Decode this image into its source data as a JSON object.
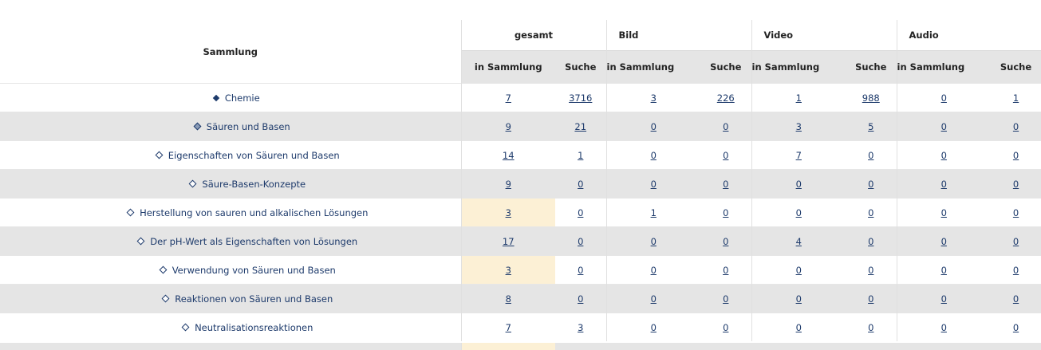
{
  "header": {
    "name_label": "Sammlung",
    "groups": [
      "gesamt",
      "Bild",
      "Video",
      "Audio"
    ],
    "sub_in": "in Sammlung",
    "sub_search": "Suche"
  },
  "rows": [
    {
      "label": "Chemie",
      "level": 0,
      "values": [
        "7",
        "3716",
        "3",
        "226",
        "1",
        "988",
        "0",
        "1"
      ]
    },
    {
      "label": "Säuren und Basen",
      "level": 1,
      "values": [
        "9",
        "21",
        "0",
        "0",
        "3",
        "5",
        "0",
        "0"
      ]
    },
    {
      "label": "Eigenschaften von Säuren und Basen",
      "level": 2,
      "values": [
        "14",
        "1",
        "0",
        "0",
        "7",
        "0",
        "0",
        "0"
      ]
    },
    {
      "label": "Säure-Basen-Konzepte",
      "level": 2,
      "values": [
        "9",
        "0",
        "0",
        "0",
        "0",
        "0",
        "0",
        "0"
      ]
    },
    {
      "label": "Herstellung von sauren und alkalischen Lösungen",
      "level": 2,
      "highlight": true,
      "values": [
        "3",
        "0",
        "1",
        "0",
        "0",
        "0",
        "0",
        "0"
      ]
    },
    {
      "label": "Der pH-Wert als Eigenschaften von Lösungen",
      "level": 2,
      "values": [
        "17",
        "0",
        "0",
        "0",
        "4",
        "0",
        "0",
        "0"
      ]
    },
    {
      "label": "Verwendung von Säuren und Basen",
      "level": 2,
      "highlight": true,
      "values": [
        "3",
        "0",
        "0",
        "0",
        "0",
        "0",
        "0",
        "0"
      ]
    },
    {
      "label": "Reaktionen von Säuren und Basen",
      "level": 2,
      "values": [
        "8",
        "0",
        "0",
        "0",
        "0",
        "0",
        "0",
        "0"
      ]
    },
    {
      "label": "Neutralisationsreaktionen",
      "level": 2,
      "values": [
        "7",
        "3",
        "0",
        "0",
        "0",
        "0",
        "0",
        "0"
      ]
    }
  ],
  "colors": {
    "link": "#1d3a6b",
    "stripe": "#e5e5e5",
    "highlight": "#fcf0d5"
  }
}
